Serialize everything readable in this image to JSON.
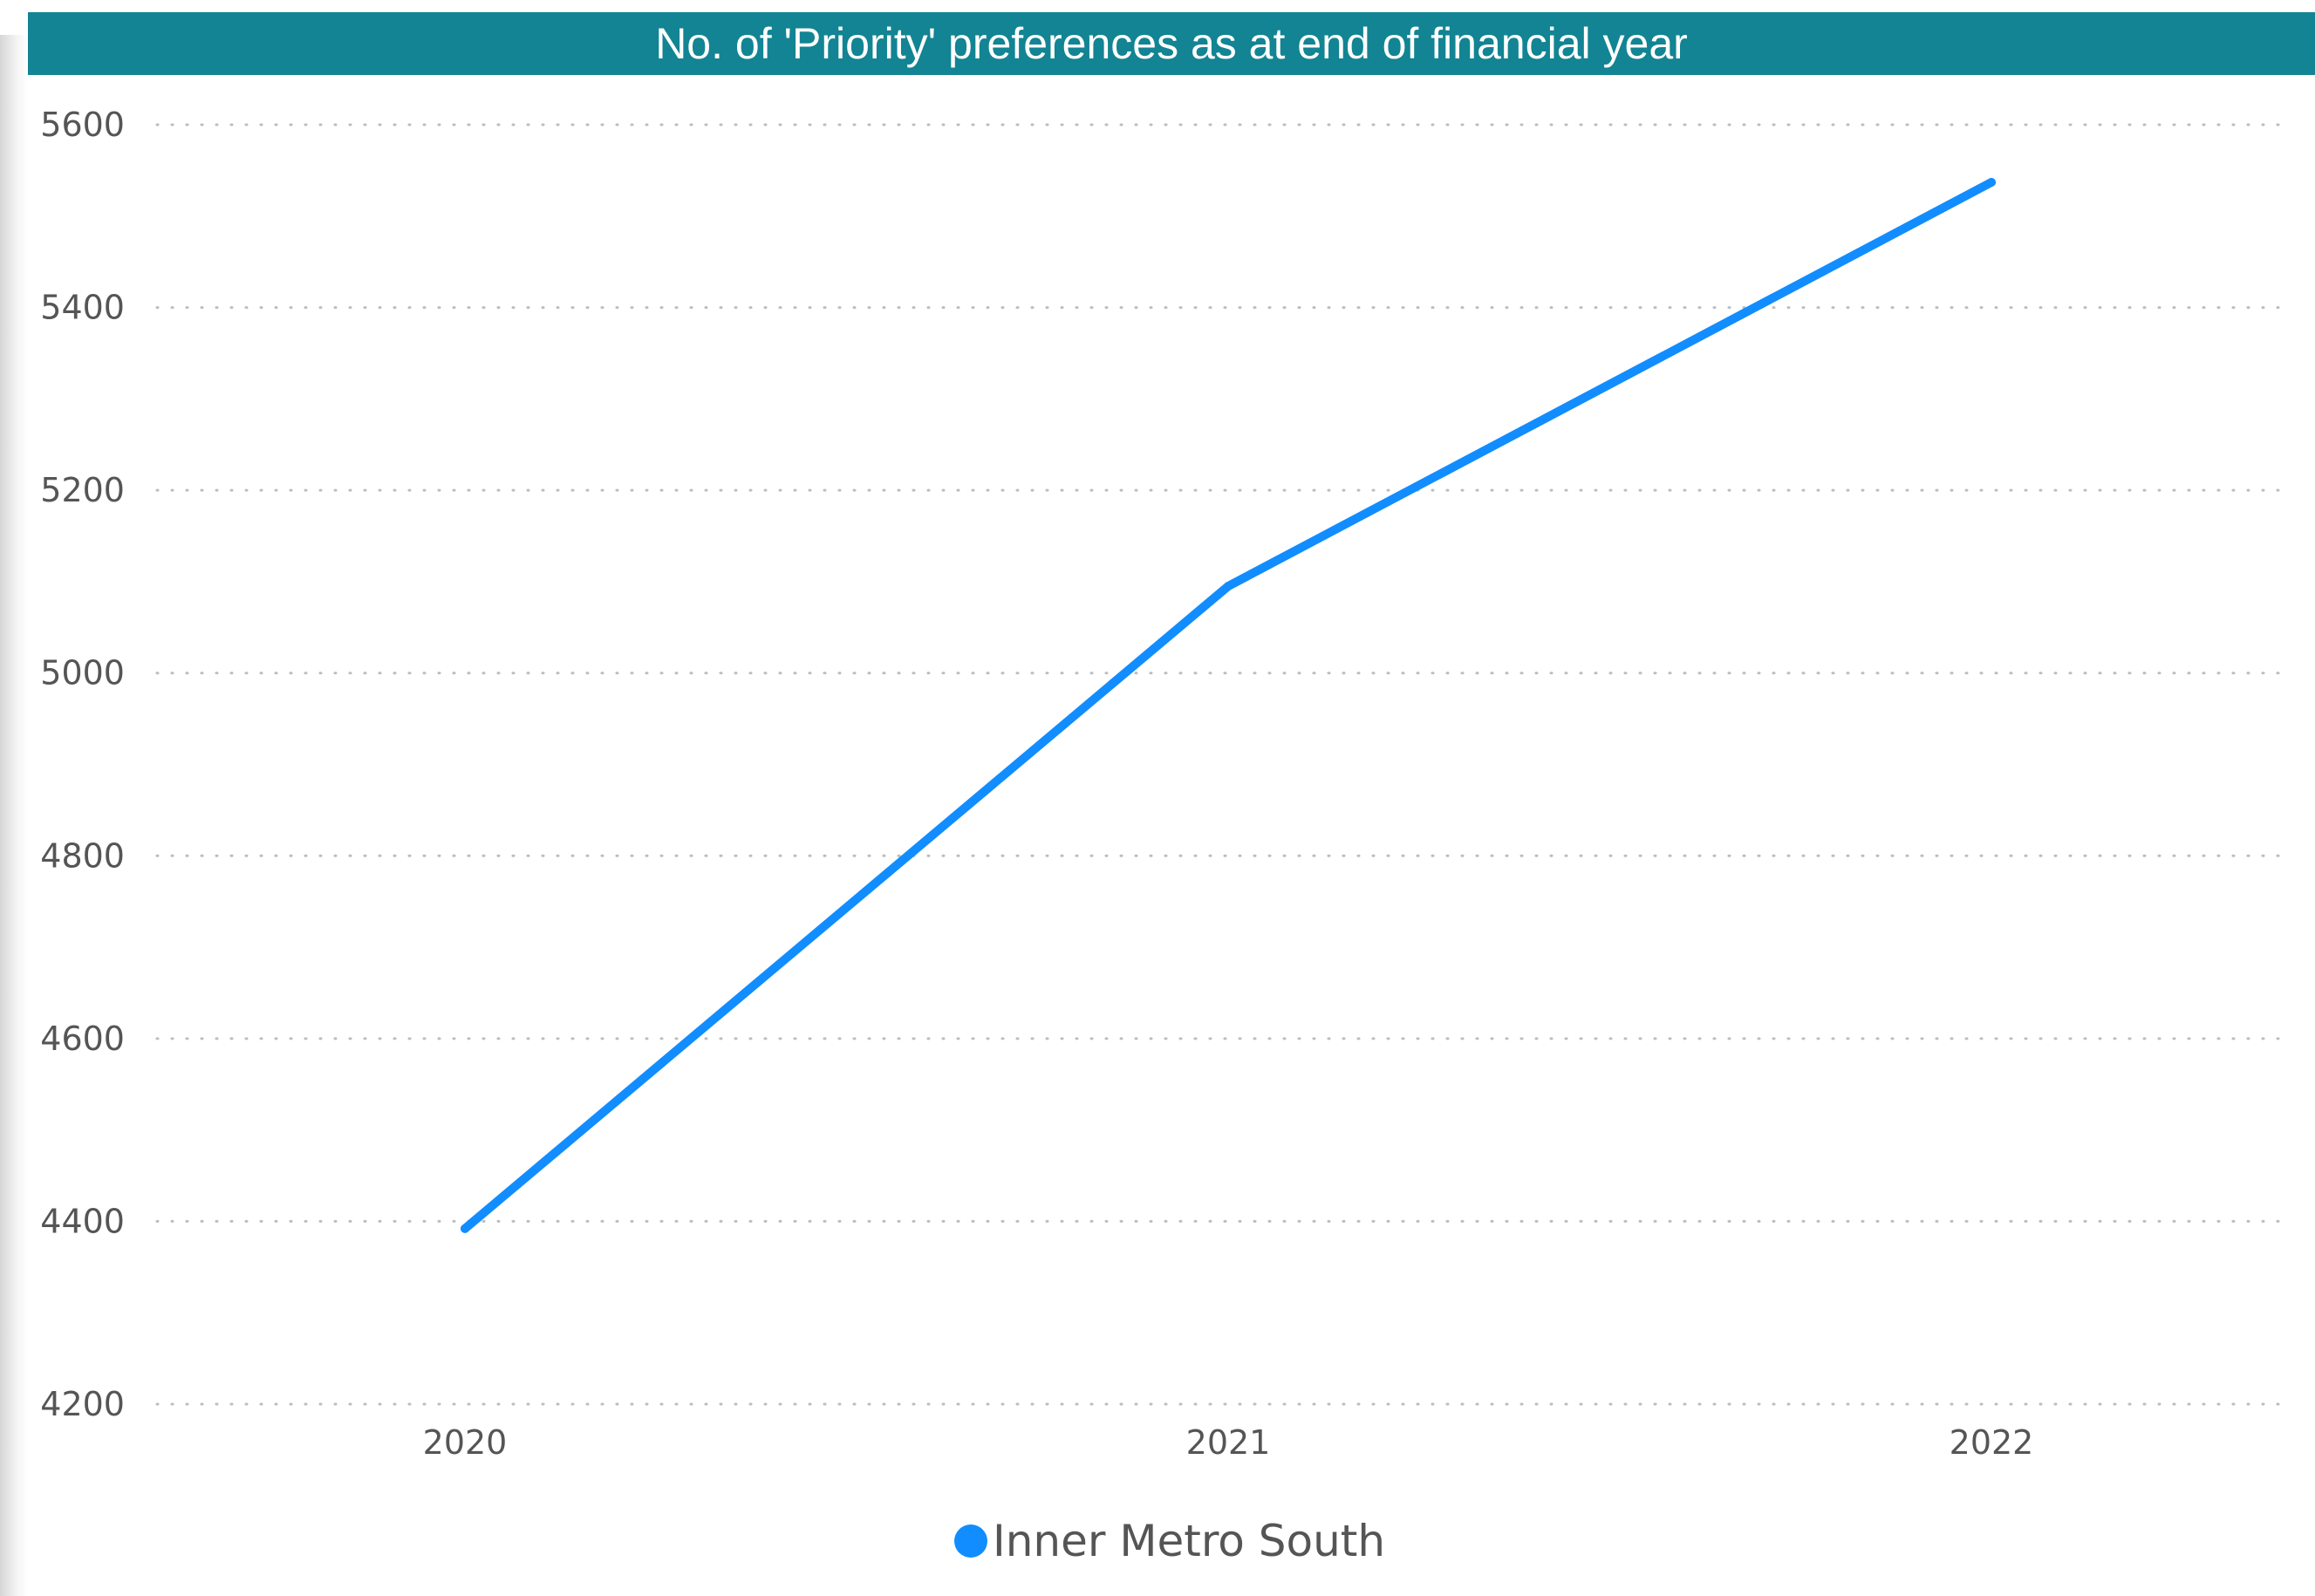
{
  "chart_data": {
    "type": "line",
    "title": "No. of 'Priority' preferences as at end of financial year",
    "x": [
      "2020",
      "2021",
      "2022"
    ],
    "series": [
      {
        "name": "Inner Metro South",
        "values": [
          4392,
          5095,
          5537
        ],
        "color": "#118DFF"
      }
    ],
    "ylim": [
      4200,
      5600
    ],
    "yticks": [
      4200,
      4400,
      4600,
      4800,
      5000,
      5200,
      5400,
      5600
    ],
    "xlabel": "",
    "ylabel": "",
    "grid": "horizontal-dotted",
    "legend": "bottom-center",
    "title_bar_color": "#128493"
  }
}
